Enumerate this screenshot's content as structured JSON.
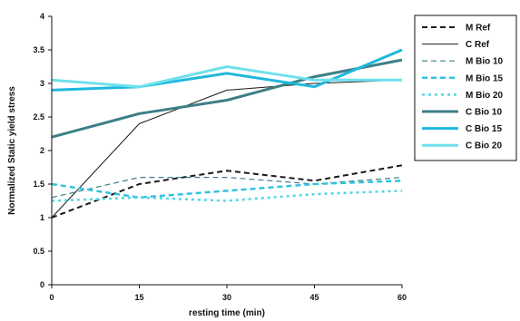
{
  "chart_data": {
    "type": "line",
    "xlabel": "resting time (min)",
    "ylabel": "Normalized Static yield stress",
    "x": [
      0,
      15,
      30,
      45,
      60
    ],
    "xticks": [
      0,
      15,
      30,
      45,
      60
    ],
    "yticks": [
      0,
      0.5,
      1,
      1.5,
      2,
      2.5,
      3,
      3.5,
      4
    ],
    "xlim": [
      0,
      60
    ],
    "ylim": [
      0,
      4
    ],
    "grid": false,
    "legend_position": "right",
    "series": [
      {
        "name": "M Ref",
        "values": [
          1.0,
          1.5,
          1.7,
          1.55,
          1.78
        ],
        "color": "#1a1a1a",
        "dash": "6,4",
        "width": 2
      },
      {
        "name": "C Ref",
        "values": [
          1.0,
          2.4,
          2.9,
          3.0,
          3.05
        ],
        "color": "#1a1a1a",
        "dash": "",
        "width": 1
      },
      {
        "name": "M Bio 10",
        "values": [
          1.3,
          1.6,
          1.6,
          1.5,
          1.6
        ],
        "color": "#3d7f86",
        "dash": "6,4",
        "width": 1.2
      },
      {
        "name": "M Bio 15",
        "values": [
          1.5,
          1.3,
          1.4,
          1.5,
          1.55
        ],
        "color": "#33c3e0",
        "dash": "6,4",
        "width": 2.5
      },
      {
        "name": "M Bio 20",
        "values": [
          1.25,
          1.3,
          1.25,
          1.35,
          1.4
        ],
        "color": "#55d4e6",
        "dash": "3,4",
        "width": 2.5
      },
      {
        "name": "C Bio 10",
        "values": [
          2.2,
          2.55,
          2.75,
          3.1,
          3.35
        ],
        "color": "#3d7f86",
        "dash": "",
        "width": 3
      },
      {
        "name": "C Bio 15",
        "values": [
          2.9,
          2.95,
          3.15,
          2.95,
          3.5
        ],
        "color": "#1fb8de",
        "dash": "",
        "width": 3
      },
      {
        "name": "C Bio 20",
        "values": [
          3.05,
          2.95,
          3.25,
          3.05,
          3.05
        ],
        "color": "#6fe0ec",
        "dash": "",
        "width": 3
      }
    ]
  }
}
